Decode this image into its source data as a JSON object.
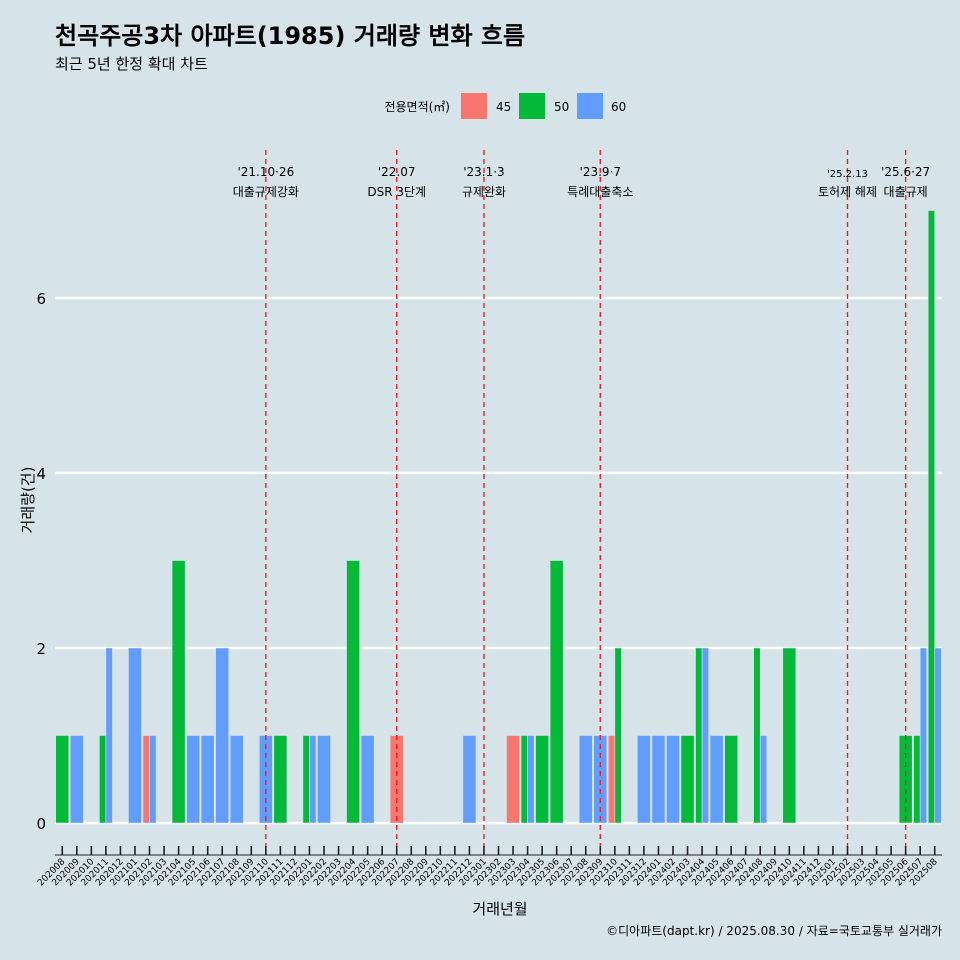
{
  "chart_data": {
    "type": "bar",
    "title": "천곡주공3차 아파트(1985) 거래량 변화 흐름",
    "subtitle": "최근 5년 한정 확대 차트",
    "xlabel": "거래년월",
    "ylabel": "거래량(건)",
    "caption": "©디아파트(dapt.kr) / 2025.08.30 / 자료=국토교통부 실거래가",
    "legend_title": "전용면적(㎡)",
    "legend_position": "top",
    "ylim": [
      -0.35,
      7.5
    ],
    "yticks": [
      0,
      2,
      4,
      6
    ],
    "grid": true,
    "colors": {
      "45": "#f8766d",
      "50": "#00ba38",
      "60": "#619cff"
    },
    "categories": [
      "202008",
      "202009",
      "202010",
      "202011",
      "202012",
      "202101",
      "202102",
      "202103",
      "202104",
      "202105",
      "202106",
      "202107",
      "202108",
      "202109",
      "202110",
      "202111",
      "202112",
      "202201",
      "202202",
      "202203",
      "202204",
      "202205",
      "202206",
      "202207",
      "202208",
      "202209",
      "202210",
      "202211",
      "202212",
      "202301",
      "202302",
      "202303",
      "202304",
      "202305",
      "202306",
      "202307",
      "202308",
      "202309",
      "202310",
      "202311",
      "202312",
      "202401",
      "202402",
      "202403",
      "202404",
      "202405",
      "202406",
      "202407",
      "202408",
      "202409",
      "202410",
      "202411",
      "202412",
      "202501",
      "202502",
      "202503",
      "202504",
      "202505",
      "202506",
      "202507",
      "202508"
    ],
    "series": [
      {
        "name": "45",
        "values": [
          0,
          0,
          0,
          0,
          0,
          0,
          1,
          0,
          0,
          0,
          0,
          0,
          0,
          0,
          0,
          0,
          0,
          0,
          0,
          0,
          0,
          0,
          0,
          1,
          0,
          0,
          0,
          0,
          0,
          0,
          0,
          1,
          0,
          0,
          0,
          0,
          0,
          0,
          1,
          0,
          0,
          0,
          0,
          0,
          0,
          0,
          0,
          0,
          0,
          0,
          0,
          0,
          0,
          0,
          0,
          0,
          0,
          0,
          0,
          0,
          0
        ]
      },
      {
        "name": "50",
        "values": [
          1,
          0,
          0,
          1,
          0,
          0,
          0,
          0,
          3,
          0,
          0,
          0,
          0,
          0,
          0,
          1,
          0,
          1,
          0,
          0,
          3,
          0,
          0,
          0,
          0,
          0,
          0,
          0,
          0,
          0,
          0,
          0,
          1,
          1,
          3,
          0,
          0,
          0,
          2,
          0,
          0,
          0,
          0,
          1,
          2,
          0,
          1,
          0,
          2,
          0,
          2,
          0,
          0,
          0,
          0,
          0,
          0,
          0,
          1,
          1,
          7
        ]
      },
      {
        "name": "60",
        "values": [
          0,
          1,
          0,
          2,
          0,
          2,
          1,
          0,
          0,
          1,
          1,
          2,
          1,
          0,
          1,
          0,
          0,
          1,
          1,
          0,
          0,
          1,
          0,
          0,
          0,
          0,
          0,
          0,
          1,
          0,
          0,
          0,
          1,
          0,
          0,
          0,
          1,
          1,
          0,
          0,
          1,
          1,
          1,
          0,
          2,
          1,
          0,
          0,
          1,
          0,
          0,
          0,
          0,
          0,
          0,
          0,
          0,
          0,
          0,
          2,
          2
        ]
      }
    ],
    "annotations": [
      {
        "date": "'21.10·26",
        "label": "대출규제강화",
        "at": "202110"
      },
      {
        "date": "'22.07",
        "label": "DSR 3단계",
        "at": "202207"
      },
      {
        "date": "'23.1·3",
        "label": "규제완화",
        "at": "202301"
      },
      {
        "date": "'23.9·7",
        "label": "특례대출축소",
        "at": "202309"
      },
      {
        "date": "'25.2.13",
        "label": "토허제 해제",
        "at": "202502"
      },
      {
        "date": "'25.6·27",
        "label": "대출규제",
        "at": "202506"
      }
    ]
  }
}
